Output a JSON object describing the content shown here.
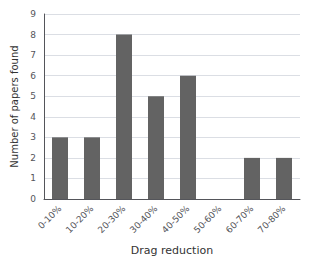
{
  "chart_data": {
    "type": "bar",
    "categories": [
      "0-10%",
      "10-20%",
      "20-30%",
      "30-40%",
      "40-50%",
      "50-60%",
      "60-70%",
      "70-80%"
    ],
    "values": [
      3,
      3,
      8,
      5,
      6,
      0,
      2,
      2
    ],
    "color": "#636363",
    "xlabel": "Drag reduction",
    "ylabel": "Number of papers found",
    "ylim": [
      0,
      9
    ],
    "yticks": [
      0,
      1,
      2,
      3,
      4,
      5,
      6,
      7,
      8,
      9
    ],
    "grid": true
  }
}
